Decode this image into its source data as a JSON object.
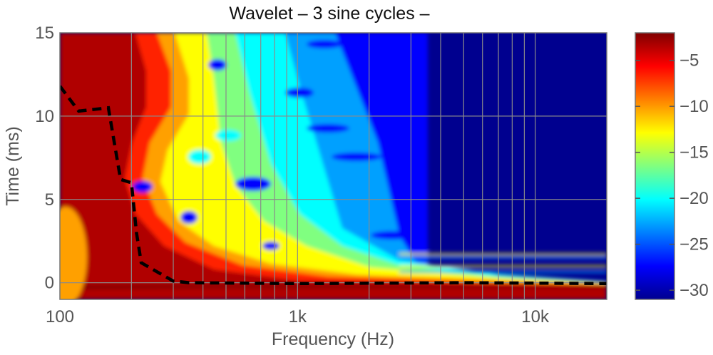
{
  "chart_data": {
    "type": "heatmap",
    "title": "Wavelet – 3 sine cycles –",
    "xlabel": "Frequency (Hz)",
    "ylabel": "Time (ms)",
    "xscale": "log",
    "xlim": [
      100,
      20000
    ],
    "ylim": [
      -1,
      15
    ],
    "x_ticks": [
      100,
      1000,
      10000
    ],
    "x_tick_labels": [
      "100",
      "1k",
      "10k"
    ],
    "y_ticks": [
      0,
      5,
      10,
      15
    ],
    "y_tick_labels": [
      "0",
      "5",
      "10",
      "15"
    ],
    "grid": true,
    "colorbar": {
      "range": [
        -31,
        -2
      ],
      "ticks": [
        -5,
        -10,
        -15,
        -20,
        -25,
        -30
      ],
      "tick_labels": [
        "−5",
        "−10",
        "−15",
        "−20",
        "−25",
        "−30"
      ],
      "colormap": "jet"
    },
    "dashed_line": {
      "color": "#000000",
      "points": [
        [
          100,
          11.8
        ],
        [
          120,
          10.3
        ],
        [
          160,
          10.5
        ],
        [
          180,
          6.2
        ],
        [
          200,
          6
        ],
        [
          210,
          3
        ],
        [
          220,
          1.2
        ],
        [
          300,
          0.1
        ],
        [
          350,
          0
        ],
        [
          1000,
          -0.05
        ],
        [
          5000,
          0
        ],
        [
          20000,
          -0.05
        ]
      ]
    }
  }
}
